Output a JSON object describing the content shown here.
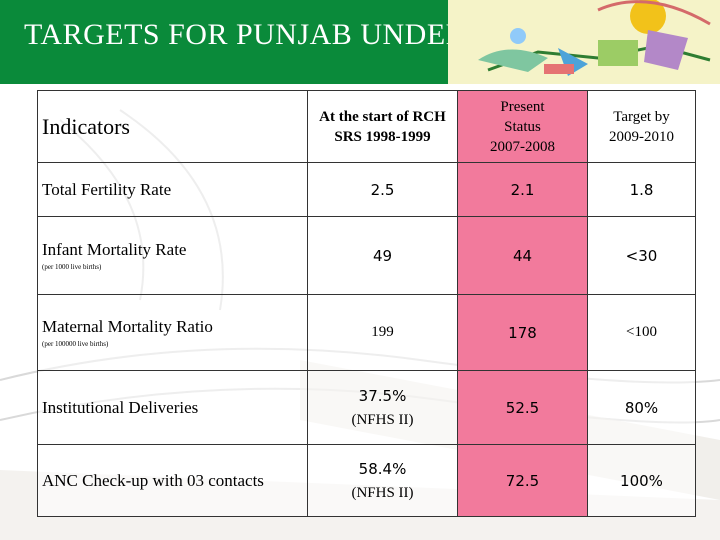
{
  "header": {
    "title": "TARGETS FOR PUNJAB UNDER NRHM"
  },
  "colors": {
    "header_bg": "#0a8a3a",
    "present_col_bg": "#f27a9c"
  },
  "table": {
    "columns": {
      "indicators": "Indicators",
      "start_line1": "At the start of RCH",
      "start_line2": "SRS 1998-1999",
      "present_line1": "Present",
      "present_line2": "Status",
      "present_line3": "2007-2008",
      "target_line1": "Target by",
      "target_line2": "2009-2010"
    },
    "rows": [
      {
        "indicator": "Total Fertility Rate",
        "note": "",
        "start": "2.5",
        "start_source": "",
        "present": "2.1",
        "target": "1.8"
      },
      {
        "indicator": "Infant Mortality Rate",
        "note": "(per 1000 live births)",
        "start": "49",
        "start_source": "",
        "present": "44",
        "target": "<30"
      },
      {
        "indicator": "Maternal Mortality Ratio",
        "note": "(per 100000 live births)",
        "start": "199",
        "start_source": "",
        "present": "178",
        "target": "<100"
      },
      {
        "indicator": "Institutional Deliveries",
        "note": "",
        "start": "37.5%",
        "start_source": "(NFHS II)",
        "present": "52.5",
        "target": "80%"
      },
      {
        "indicator": "ANC Check-up with 03 contacts",
        "note": "",
        "start": "58.4%",
        "start_source": "(NFHS II)",
        "present": "72.5",
        "target": "100%"
      }
    ]
  }
}
